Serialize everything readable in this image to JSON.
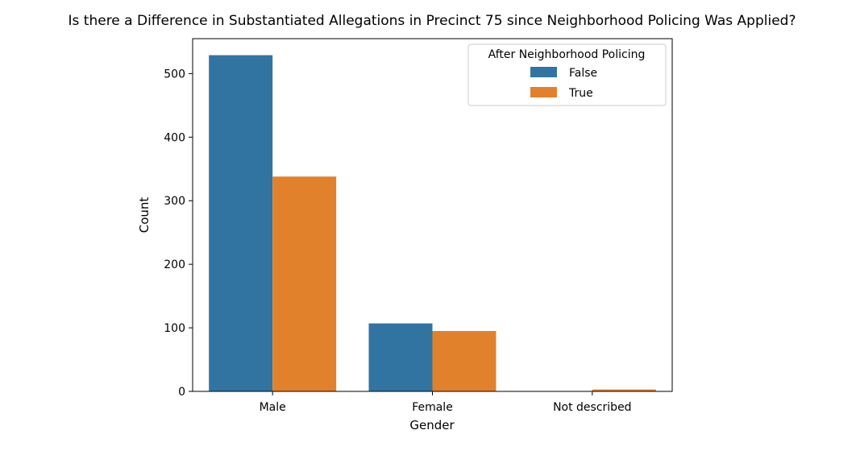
{
  "colors": {
    "False": "#3274a1",
    "True": "#e1812c"
  },
  "chart_data": {
    "type": "bar",
    "title": "Is there a Difference in Substantiated Allegations in Precinct 75 since Neighborhood Policing Was Applied?",
    "xlabel": "Gender",
    "ylabel": "Count",
    "categories": [
      "Male",
      "Female",
      "Not described"
    ],
    "series": [
      {
        "name": "False",
        "values": [
          529,
          107,
          0
        ]
      },
      {
        "name": "True",
        "values": [
          338,
          95,
          3
        ]
      }
    ],
    "ylim": [
      0,
      555
    ],
    "yticks": [
      0,
      100,
      200,
      300,
      400,
      500
    ],
    "legend": {
      "title": "After Neighborhood Policing",
      "placement": "top-right"
    },
    "grid": false
  }
}
